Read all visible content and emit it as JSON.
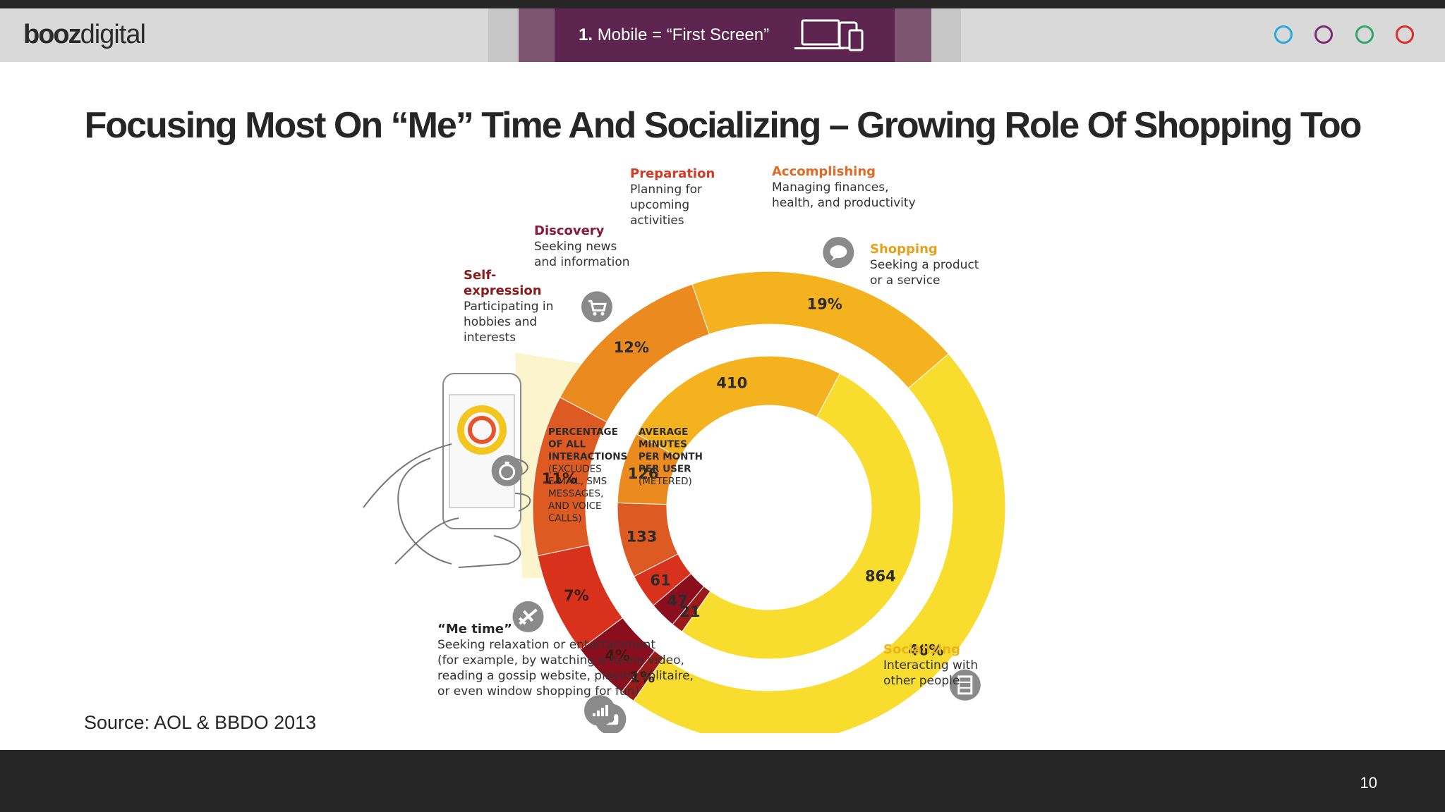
{
  "header": {
    "logo_bold": "booz",
    "logo_light": "digital",
    "tab_number": "1.",
    "tab_label": "Mobile = “First Screen”",
    "tab_icon": "devices-icon",
    "nav_dots": [
      {
        "name": "nav-dot-blue",
        "color": "#29a8e0"
      },
      {
        "name": "nav-dot-purple",
        "color": "#7a2a75"
      },
      {
        "name": "nav-dot-green",
        "color": "#2fa66e"
      },
      {
        "name": "nav-dot-red",
        "color": "#e02b2b"
      }
    ]
  },
  "slide": {
    "title": "Focusing Most On “Me” Time And Socializing – Growing Role Of Shopping  Too",
    "source": "Source: AOL & BBDO 2013",
    "page_number": "10"
  },
  "chart_data": {
    "type": "donut",
    "outer_ring_label": [
      "PERCENTAGE",
      "OF ALL",
      "INTERACTIONS",
      "(EXCLUDES",
      "E-MAIL, SMS",
      "MESSAGES,",
      "AND VOICE",
      "CALLS)"
    ],
    "inner_ring_label": [
      "AVERAGE",
      "MINUTES",
      "PER MONTH",
      "PER USER",
      "(METERED)"
    ],
    "categories": [
      "Self-expression",
      "Discovery",
      "Preparation",
      "Accomplishing",
      "Shopping",
      "Socializing",
      "“Me time”"
    ],
    "series": [
      {
        "name": "PERCENTAGE OF ALL INTERACTIONS",
        "values": [
          1,
          4,
          7,
          11,
          12,
          19,
          46
        ],
        "labels": [
          "1%",
          "4%",
          "7%",
          "11%",
          "12%",
          "19%",
          "46%"
        ]
      },
      {
        "name": "AVERAGE MINUTES PER MONTH PER USER",
        "values": [
          21,
          47,
          61,
          133,
          126,
          410,
          864
        ],
        "labels": [
          "21",
          "47",
          "61",
          "133",
          "126",
          "410",
          "864"
        ]
      }
    ],
    "colors": [
      "#9a1a1a",
      "#8b0e1f",
      "#d8321c",
      "#dd5a22",
      "#ea8a1f",
      "#f4b21f",
      "#f8dc2e"
    ],
    "segments": [
      {
        "title": "Self-",
        "title2": "expression",
        "desc": [
          "Participating in",
          "hobbies and",
          "interests"
        ],
        "title_color": "#8b1a1a",
        "icon": "camera-icon"
      },
      {
        "title": "Discovery",
        "desc": [
          "Seeking news",
          "and information"
        ],
        "title_color": "#8b1a3a",
        "icon": "signal-bars-icon"
      },
      {
        "title": "Preparation",
        "desc": [
          "Planning for",
          "upcoming",
          "activities"
        ],
        "title_color": "#d23b24",
        "icon": "airplane-icon"
      },
      {
        "title": "Accomplishing",
        "desc": [
          "Managing finances,",
          "health, and productivity"
        ],
        "title_color": "#e26a24",
        "icon": "stopwatch-icon"
      },
      {
        "title": "Shopping",
        "desc": [
          "Seeking a product",
          "or a service"
        ],
        "title_color": "#e6a01a",
        "icon": "cart-icon"
      },
      {
        "title": "Socializing",
        "desc": [
          "Interacting with",
          "other people"
        ],
        "title_color": "#eab41a",
        "icon": "chat-bubble-icon"
      },
      {
        "title": "“Me time”",
        "desc": [
          "Seeking relaxation or entertainment",
          "(for example, by watching a funny video,",
          "reading a gossip website, playing solitaire,",
          "or even window shopping for fun)"
        ],
        "title_color": "#262626",
        "icon": "film-icon"
      }
    ]
  }
}
